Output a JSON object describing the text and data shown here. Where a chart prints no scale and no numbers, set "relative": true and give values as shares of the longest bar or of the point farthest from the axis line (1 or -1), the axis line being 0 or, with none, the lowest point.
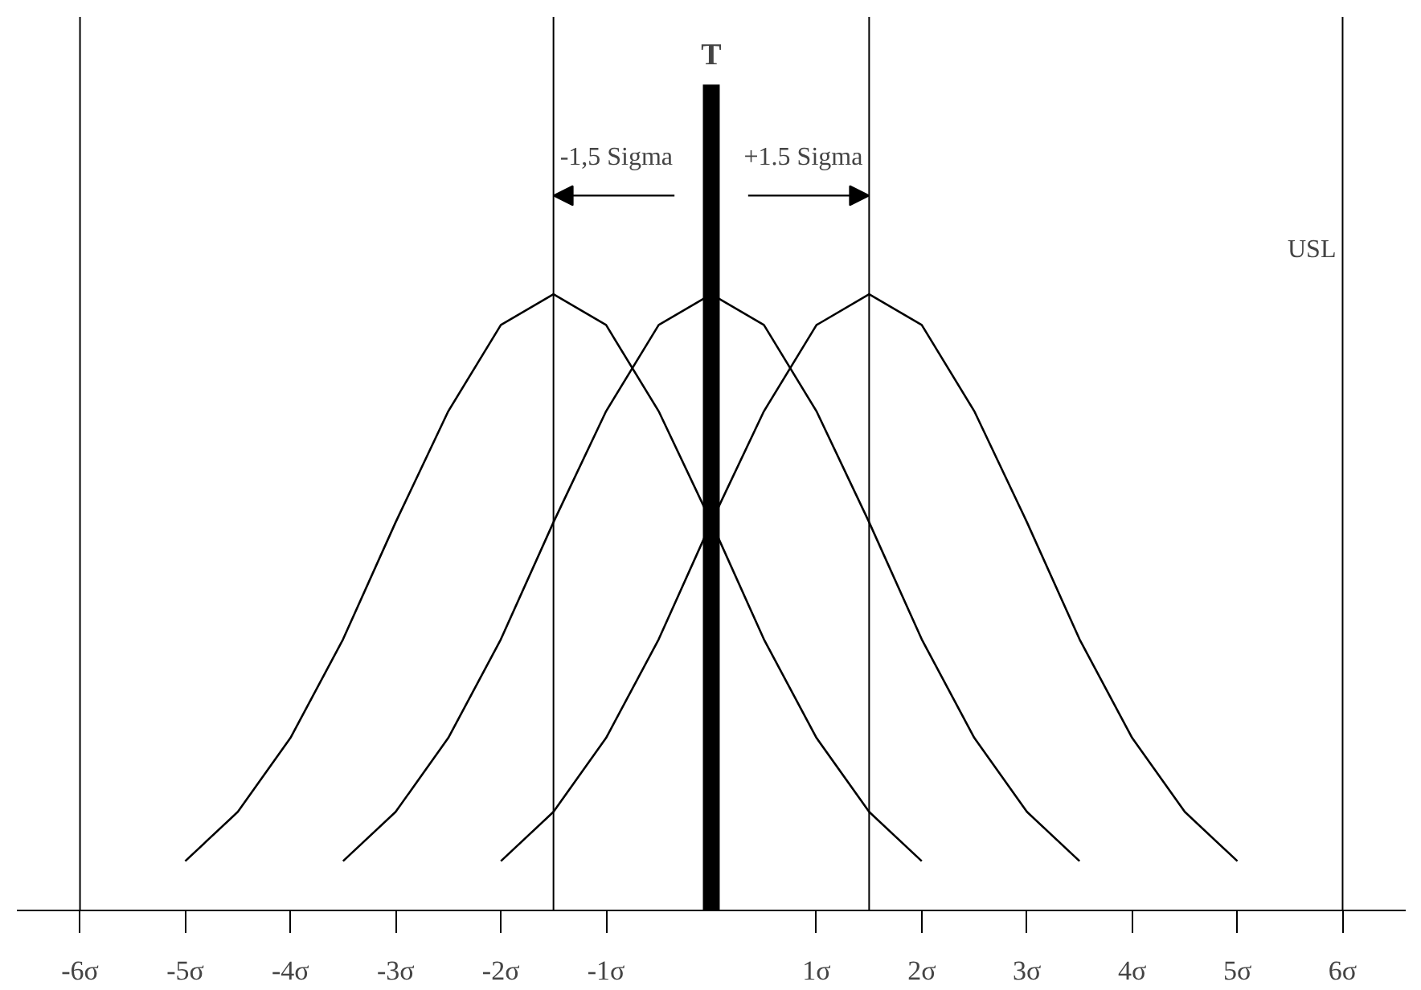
{
  "chart_data": {
    "type": "line",
    "relative": true,
    "x": [
      -3.5,
      -3.0,
      -2.5,
      -2.0,
      -1.5,
      -1.0,
      -0.5,
      0.0,
      0.5,
      1.0,
      1.5,
      2.0,
      2.5,
      3.0,
      3.5
    ],
    "series": [
      {
        "color": "#000000",
        "x": [
          -5.0,
          -4.5,
          -4.0,
          -3.5,
          -3.0,
          -2.5,
          -2.0,
          -1.5,
          -1.0,
          -0.5,
          0.0,
          0.5,
          1.0,
          1.5,
          2.0
        ],
        "values": [
          0.08,
          0.16,
          0.28,
          0.44,
          0.63,
          0.81,
          0.95,
          1.0,
          0.95,
          0.81,
          0.63,
          0.44,
          0.28,
          0.16,
          0.08
        ]
      },
      {
        "color": "#000000",
        "values": [
          0.08,
          0.16,
          0.28,
          0.44,
          0.63,
          0.81,
          0.95,
          1.0,
          0.95,
          0.81,
          0.63,
          0.44,
          0.28,
          0.16,
          0.08
        ]
      },
      {
        "color": "#000000",
        "x": [
          -2.0,
          -1.5,
          -1.0,
          -0.5,
          0.0,
          0.5,
          1.0,
          1.5,
          2.0,
          2.5,
          3.0,
          3.5,
          4.0,
          4.5,
          5.0
        ],
        "values": [
          0.08,
          0.16,
          0.28,
          0.44,
          0.63,
          0.81,
          0.95,
          1.0,
          0.95,
          0.81,
          0.63,
          0.44,
          0.28,
          0.16,
          0.08
        ]
      }
    ],
    "xlim": [
      -6.6,
      6.6
    ],
    "xticks": [
      {
        "value": -6,
        "label": "-6σ"
      },
      {
        "value": -5,
        "label": "-5σ"
      },
      {
        "value": -4,
        "label": "-4σ"
      },
      {
        "value": -3,
        "label": "-3σ"
      },
      {
        "value": -2,
        "label": "-2σ"
      },
      {
        "value": -1,
        "label": "-1σ"
      },
      {
        "value": 1,
        "label": "1σ"
      },
      {
        "value": 2,
        "label": "2σ"
      },
      {
        "value": 3,
        "label": "3σ"
      },
      {
        "value": 4,
        "label": "4σ"
      },
      {
        "value": 5,
        "label": "5σ"
      },
      {
        "value": 6,
        "label": "6σ"
      }
    ],
    "ref_lines": [
      {
        "axis": "x",
        "value": -6,
        "label": null,
        "color": "#000000"
      },
      {
        "axis": "x",
        "value": -1.5,
        "label": "-1,5 Sigma",
        "color": "#000000"
      },
      {
        "axis": "x",
        "value": 1.5,
        "label": "+1.5 Sigma",
        "color": "#000000"
      },
      {
        "axis": "x",
        "value": 6,
        "label": "USL",
        "color": "#000000"
      }
    ],
    "bands": [
      {
        "axis": "x",
        "from": -0.08,
        "to": 0.08,
        "label": "T",
        "color": "#000000"
      }
    ],
    "grid": false,
    "marker": "none",
    "line_style": "solid"
  }
}
